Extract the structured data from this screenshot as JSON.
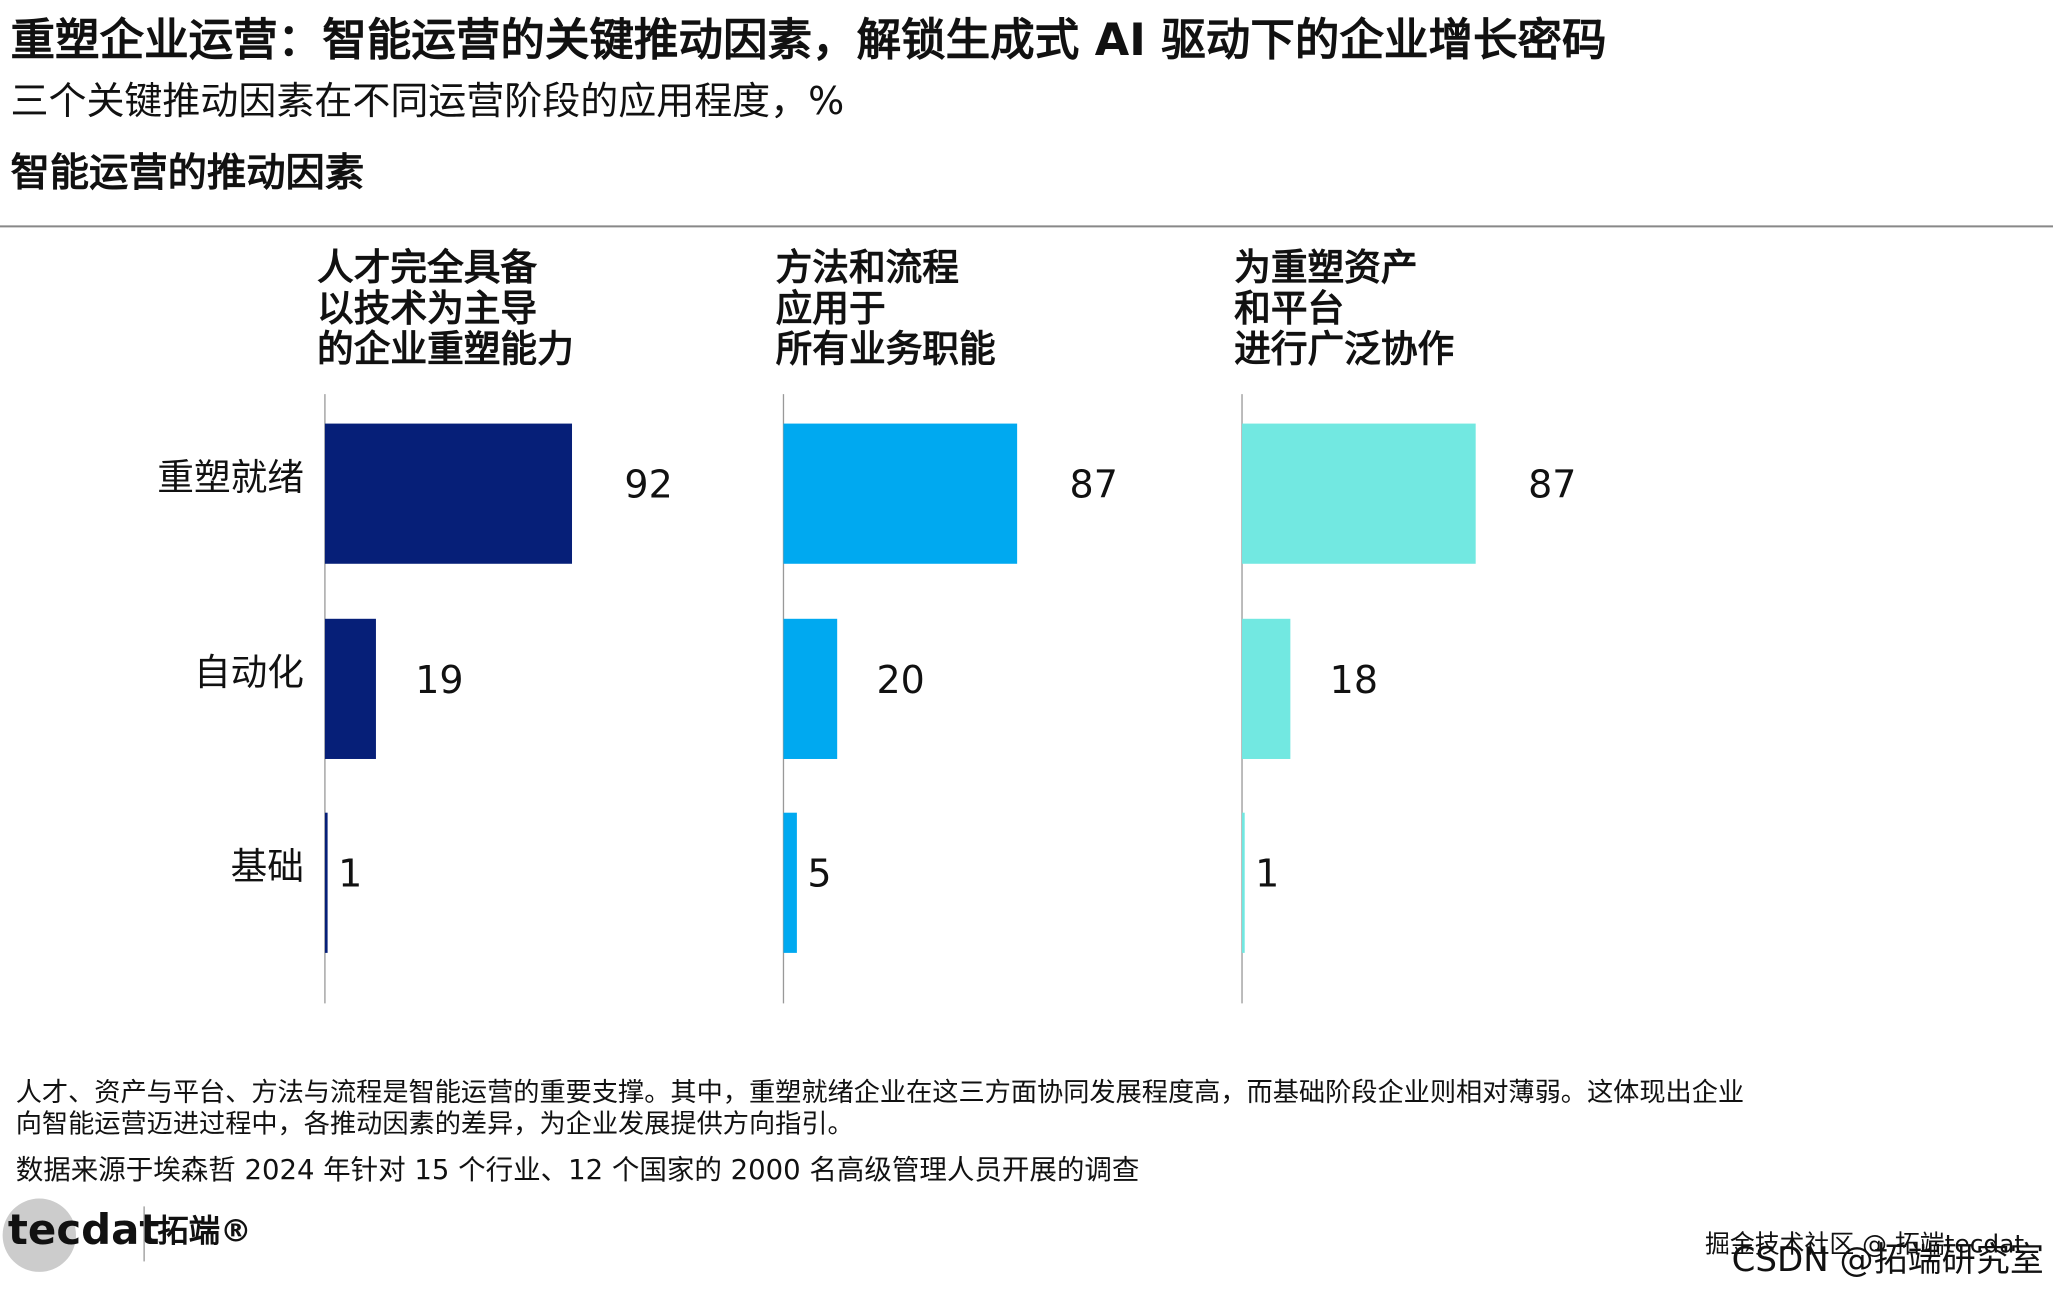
{
  "header": {
    "title": "重塑企业运营：智能运营的关键推动因素，解锁生成式 AI 驱动下的企业增长密码",
    "subtitle": "三个关键推动因素在不同运营阶段的应用程度，%",
    "section": "智能运营的推动因素"
  },
  "chart_data": {
    "type": "bar",
    "categories": [
      "重塑就绪",
      "自动化",
      "基础"
    ],
    "series": [
      {
        "name": [
          "人才完全具备",
          "以技术为主导",
          "的企业重塑能力"
        ],
        "color": "#061f78",
        "values": [
          92,
          19,
          1
        ]
      },
      {
        "name": [
          "方法和流程",
          "应用于",
          "所有业务职能"
        ],
        "color": "#00a9f0",
        "values": [
          87,
          20,
          5
        ]
      },
      {
        "name": [
          "为重塑资产",
          "和平台",
          "进行广泛协作"
        ],
        "color": "#72e8e1",
        "values": [
          87,
          18,
          1
        ]
      }
    ]
  },
  "footer": {
    "note": [
      "人才、资产与平台、方法与流程是智能运营的重要支撑。其中，重塑就绪企业在这三方面协同发展程度高，而基础阶段企业则相对薄弱。这体现出企业",
      "向智能运营迈进过程中，各推动因素的差异，为企业发展提供方向指引。"
    ],
    "source": "数据来源于埃森哲 2024 年针对 15 个行业、12 个国家的 2000 名高级管理人员开展的调查",
    "logo": {
      "en": "tecdat",
      "cn": "拓端®"
    },
    "watermark": [
      "掘金技术社区 @ 拓端tecdat",
      "CSDN @拓端研究室"
    ]
  }
}
